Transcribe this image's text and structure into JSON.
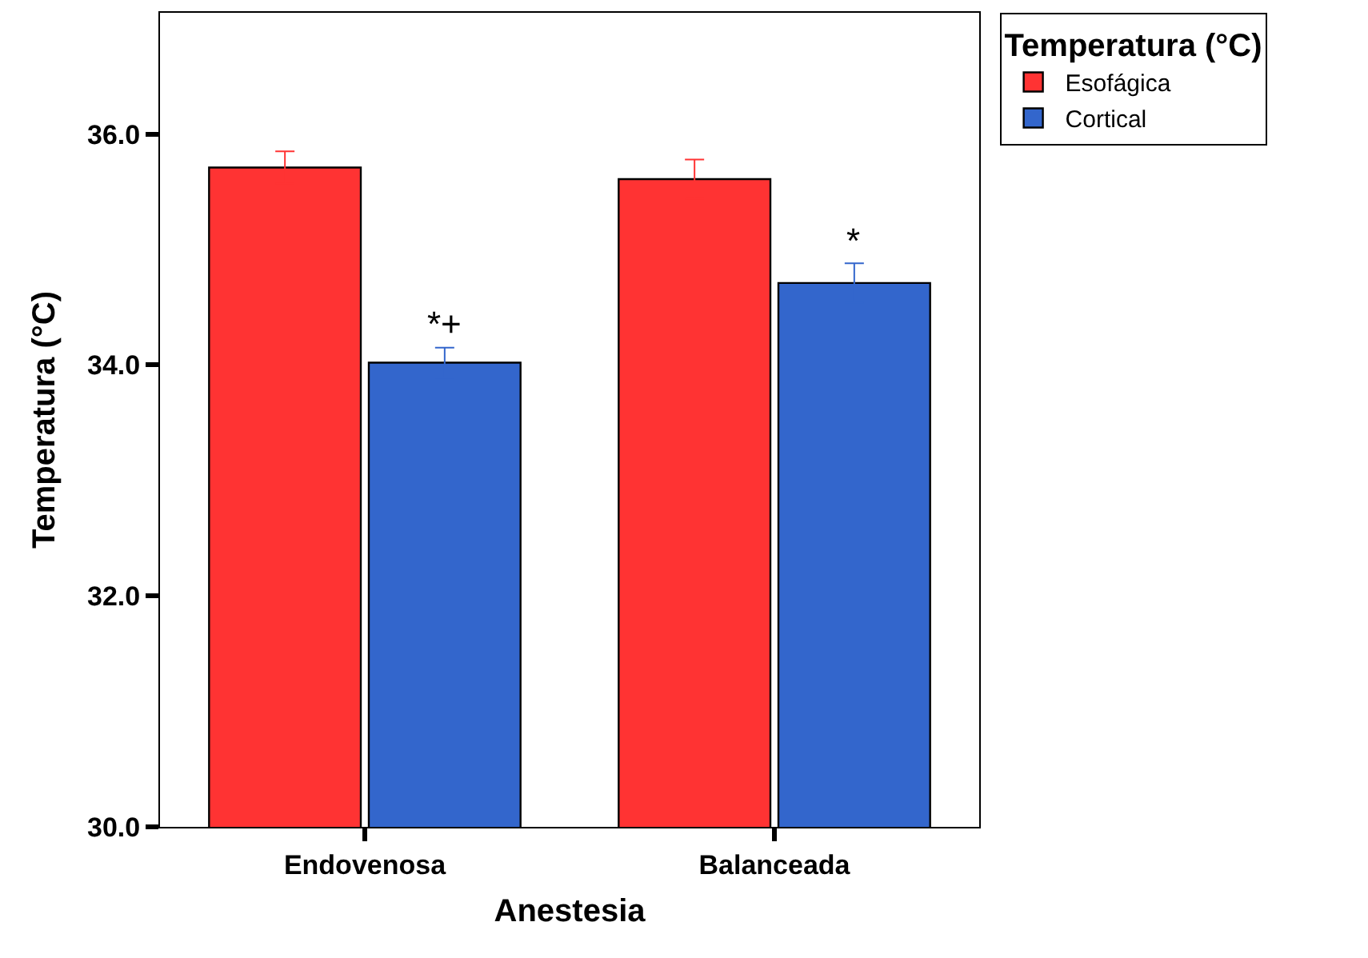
{
  "chart_data": {
    "type": "bar",
    "xlabel": "Anestesia",
    "ylabel": "Temperatura (°C)",
    "legend_title": "Temperatura (°C)",
    "categories": [
      "Endovenosa",
      "Balanceada"
    ],
    "series": [
      {
        "name": "Esofágica",
        "color": "#ff3333",
        "values": [
          35.71,
          35.61
        ],
        "errors": [
          0.14,
          0.17
        ]
      },
      {
        "name": "Cortical",
        "color": "#3366cc",
        "values": [
          34.02,
          34.71
        ],
        "errors": [
          0.13,
          0.17
        ]
      }
    ],
    "ylim": [
      30,
      37.05
    ],
    "yticks": [
      {
        "value": 30,
        "label": "30.0"
      },
      {
        "value": 32,
        "label": "32.0"
      },
      {
        "value": 34,
        "label": "34.0"
      },
      {
        "value": 36,
        "label": "36.0"
      }
    ],
    "annotations": [
      {
        "text": "*+",
        "x": "Endovenosa",
        "y": 34.15
      },
      {
        "text": "*",
        "x": "Balanceada",
        "y": 34.88
      }
    ],
    "grid": false,
    "legend": "top right"
  }
}
